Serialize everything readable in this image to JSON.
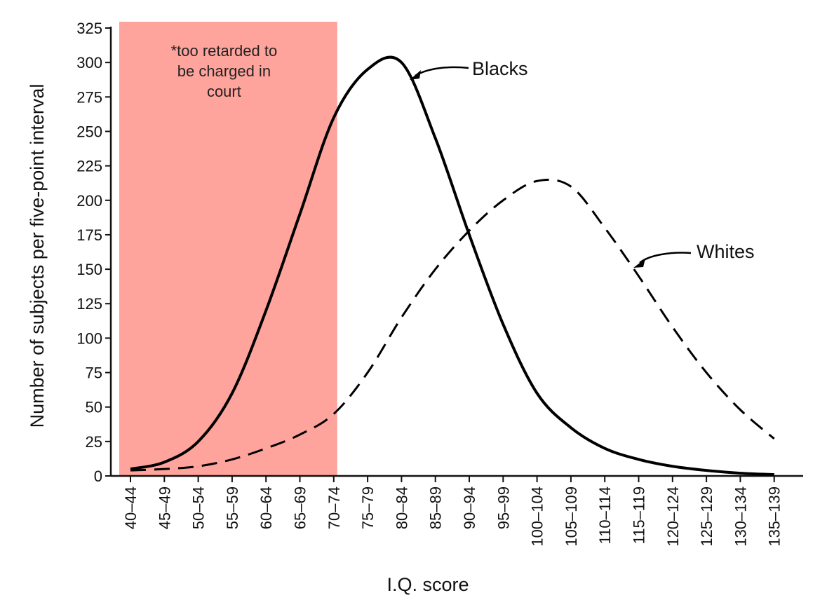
{
  "chart_data": {
    "type": "line",
    "title": "",
    "xlabel": "I.Q. score",
    "ylabel": "Number of subjects per five-point interval",
    "ylim": [
      0,
      325
    ],
    "yticks": [
      0,
      25,
      50,
      75,
      100,
      125,
      150,
      175,
      200,
      225,
      250,
      275,
      300,
      325
    ],
    "categories": [
      "40–44",
      "45–49",
      "50–54",
      "55–59",
      "60–64",
      "65–69",
      "70–74",
      "75–79",
      "80–84",
      "85–89",
      "90–94",
      "95–99",
      "100–104",
      "105–109",
      "110–114",
      "115–119",
      "120–124",
      "125–129",
      "130–134",
      "135–139"
    ],
    "series": [
      {
        "name": "Blacks",
        "style": "solid",
        "values": [
          5,
          10,
          25,
          60,
          120,
          190,
          260,
          295,
          300,
          245,
          175,
          110,
          60,
          35,
          20,
          12,
          7,
          4,
          2,
          1
        ]
      },
      {
        "name": "Whites",
        "style": "dashed",
        "values": [
          4,
          5,
          7,
          12,
          20,
          30,
          45,
          75,
          115,
          150,
          178,
          200,
          214,
          210,
          180,
          145,
          108,
          75,
          48,
          27
        ]
      }
    ],
    "shaded_region": {
      "from_category": "40–44",
      "to_category": "70–74",
      "color": "#FFA49C",
      "label": "*too retarded to\nbe charged in\ncourt"
    },
    "grid": false,
    "legend": "inline labels with arrows"
  }
}
